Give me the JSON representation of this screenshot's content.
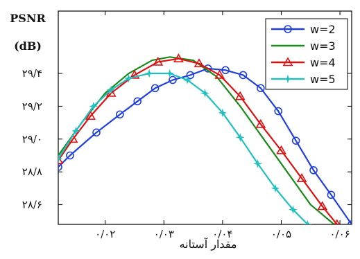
{
  "chart_data": {
    "type": "line",
    "ylabel_line1": "PSNR",
    "ylabel_line2": "(dB)",
    "xlabel": "مقدار آستانه",
    "xlim": [
      0.012,
      0.062
    ],
    "ylim": [
      28.48,
      29.78
    ],
    "grid": false,
    "legend_position": "top-right",
    "x_ticks": [
      0.02,
      0.03,
      0.04,
      0.05,
      0.06
    ],
    "x_tick_labels": [
      "۰/۰۲",
      "۰/۰۳",
      "۰/۰۴",
      "۰/۰۵",
      "۰/۰۶"
    ],
    "y_ticks": [
      28.6,
      28.8,
      29.0,
      29.2,
      29.4
    ],
    "y_tick_labels": [
      "۲۸/۶",
      "۲۸/۸",
      "۲۹/۰",
      "۲۹/۲",
      "۲۹/۴"
    ],
    "series": [
      {
        "name": "w=2",
        "color": "#1f3fe0",
        "marker": "circle",
        "x": [
          0.012,
          0.014,
          0.0185,
          0.0225,
          0.0255,
          0.0285,
          0.0315,
          0.0345,
          0.0375,
          0.0405,
          0.0435,
          0.0465,
          0.0495,
          0.0525,
          0.0555,
          0.0585,
          0.062
        ],
        "y": [
          28.83,
          28.9,
          29.04,
          29.15,
          29.23,
          29.31,
          29.36,
          29.39,
          29.43,
          29.42,
          29.39,
          29.31,
          29.17,
          28.99,
          28.81,
          28.66,
          28.48
        ]
      },
      {
        "name": "w=3",
        "color": "#1a8a1a",
        "marker": "none",
        "x": [
          0.012,
          0.016,
          0.02,
          0.024,
          0.028,
          0.031,
          0.035,
          0.039,
          0.043,
          0.047,
          0.051,
          0.055,
          0.059
        ],
        "y": [
          28.9,
          29.1,
          29.28,
          29.4,
          29.48,
          29.5,
          29.48,
          29.38,
          29.2,
          29.0,
          28.8,
          28.6,
          28.48
        ]
      },
      {
        "name": "w=4",
        "color": "#e01010",
        "marker": "triangle",
        "x": [
          0.012,
          0.0145,
          0.0175,
          0.021,
          0.025,
          0.029,
          0.0325,
          0.036,
          0.0395,
          0.043,
          0.0465,
          0.05,
          0.0535,
          0.057,
          0.0595
        ],
        "y": [
          28.87,
          29.0,
          29.14,
          29.28,
          29.39,
          29.47,
          29.49,
          29.46,
          29.39,
          29.26,
          29.09,
          28.93,
          28.76,
          28.59,
          28.48
        ]
      },
      {
        "name": "w=5",
        "color": "#20c0c0",
        "marker": "star",
        "x": [
          0.012,
          0.015,
          0.018,
          0.021,
          0.024,
          0.0275,
          0.031,
          0.034,
          0.037,
          0.04,
          0.043,
          0.046,
          0.049,
          0.052,
          0.0545
        ],
        "y": [
          28.88,
          29.05,
          29.2,
          29.3,
          29.37,
          29.4,
          29.4,
          29.36,
          29.28,
          29.16,
          29.01,
          28.85,
          28.7,
          28.57,
          28.48
        ]
      }
    ]
  }
}
